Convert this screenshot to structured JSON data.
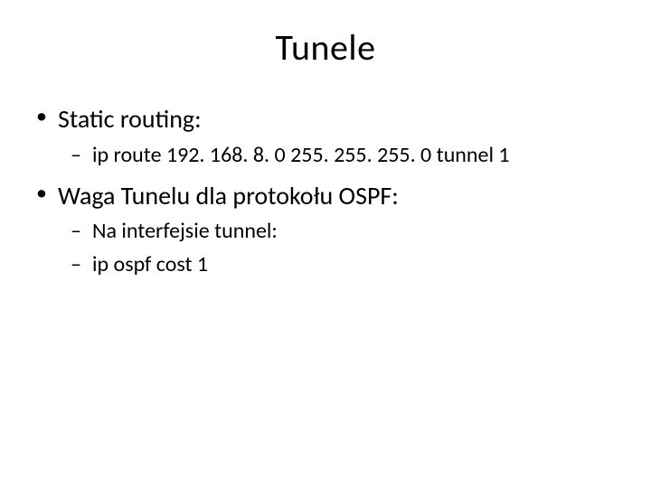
{
  "slide": {
    "title": "Tunele",
    "bullets": [
      {
        "level": 1,
        "text": "Static routing:"
      },
      {
        "level": 2,
        "text": "ip route 192. 168. 8. 0 255. 255. 255. 0  tunnel 1"
      },
      {
        "level": 1,
        "text": "Waga Tunelu dla protokołu OSPF:"
      },
      {
        "level": 2,
        "text": "Na interfejsie tunnel:"
      },
      {
        "level": 2,
        "text": "ip ospf cost 1"
      }
    ]
  },
  "style": {
    "background_color": "#ffffff",
    "text_color": "#000000",
    "title_fontsize": 40,
    "level1_fontsize": 28,
    "level2_fontsize": 24,
    "font_family": "Calibri"
  }
}
